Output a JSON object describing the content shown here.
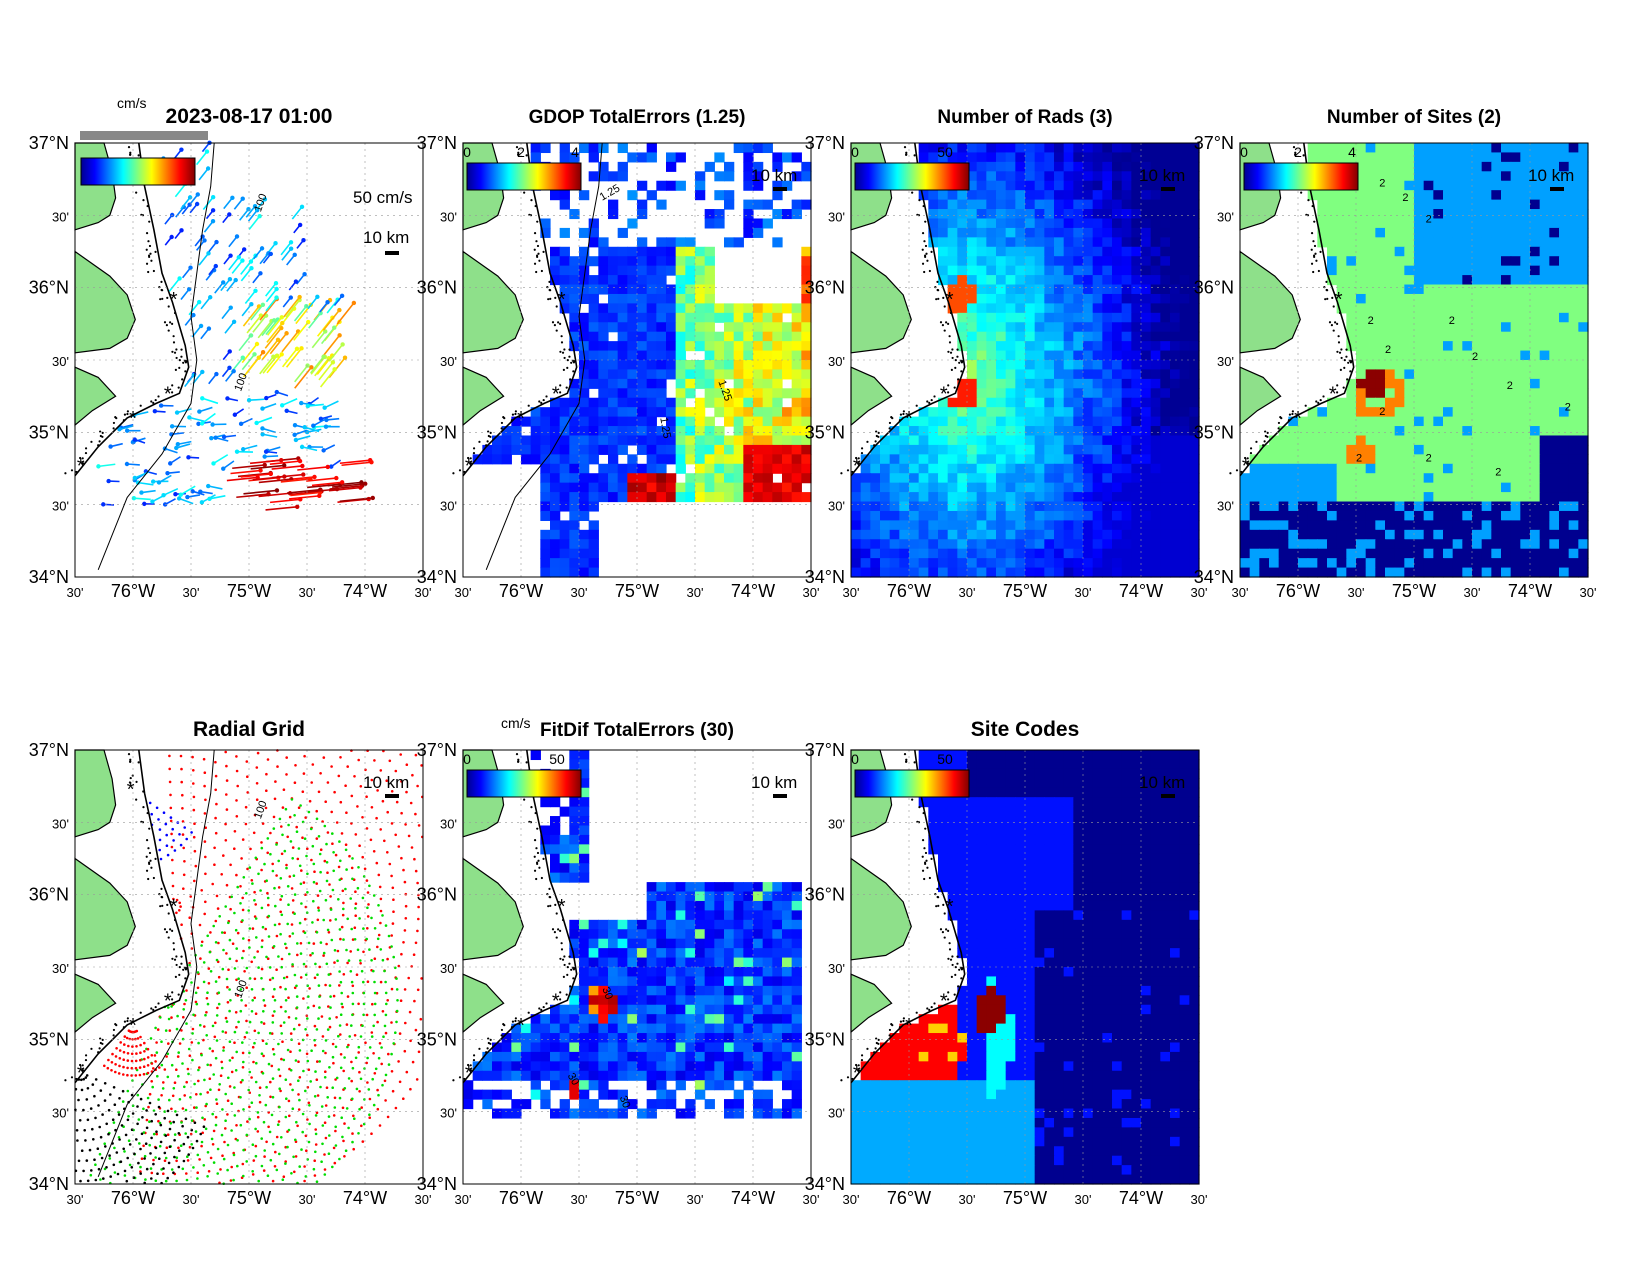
{
  "figure": {
    "timestamp": "2023-08-17 01:00"
  },
  "axes": {
    "lat_labels": [
      "37°N",
      "30'",
      "36°N",
      "30'",
      "35°N",
      "30'",
      "34°N"
    ],
    "lon_labels": [
      "30'",
      "76°W",
      "30'",
      "75°W",
      "30'",
      "74°W",
      "30'"
    ],
    "lon_range": [
      -76.5,
      -73.5
    ],
    "lat_range": [
      34,
      37
    ]
  },
  "colors": {
    "land": "#8ee08a",
    "jet_scale": [
      "#00008f",
      "#0000ff",
      "#0080ff",
      "#00ffff",
      "#80ff80",
      "#ffff00",
      "#ff8000",
      "#ff0000",
      "#800000"
    ],
    "site_marker": "#ff0000"
  },
  "panels": [
    {
      "id": "total-vectors",
      "title": "2023-08-17 01:00",
      "unit_label": "cm/s",
      "colorbar_ticks": [],
      "scale_text": "50 cm/s",
      "km_text": "10 km",
      "contour_labels": [
        "100",
        "100"
      ]
    },
    {
      "id": "gdop",
      "title": "GDOP TotalErrors (1.25)",
      "unit_label": "",
      "colorbar_ticks": [
        "0",
        "2",
        "4"
      ],
      "km_text": "10 km",
      "contour_labels": [
        "1.25",
        "1.25",
        "1.25"
      ]
    },
    {
      "id": "num-rads",
      "title": "Number of Rads (3)",
      "unit_label": "",
      "colorbar_ticks": [
        "0",
        "50"
      ],
      "km_text": "10 km",
      "contour_labels": []
    },
    {
      "id": "num-sites",
      "title": "Number of Sites (2)",
      "unit_label": "",
      "colorbar_ticks": [
        "0",
        "2",
        "4"
      ],
      "km_text": "10 km",
      "contour_labels": [
        "2",
        "2",
        "2",
        "2",
        "2",
        "2",
        "2",
        "2",
        "2",
        "2",
        "2",
        "2",
        "2"
      ]
    },
    {
      "id": "radial-grid",
      "title": "Radial Grid",
      "unit_label": "",
      "colorbar_ticks": [],
      "km_text": "10 km",
      "contour_labels": [
        "100",
        "100"
      ]
    },
    {
      "id": "fitdif",
      "title": "FitDif TotalErrors (30)",
      "unit_label": "cm/s",
      "colorbar_ticks": [
        "0",
        "50"
      ],
      "km_text": "10 km",
      "contour_labels": [
        "30",
        "30",
        "30"
      ]
    },
    {
      "id": "site-codes",
      "title": "Site Codes",
      "unit_label": "",
      "colorbar_ticks": [
        "0",
        "50"
      ],
      "km_text": "10 km",
      "contour_labels": []
    }
  ],
  "sites": [
    {
      "lon": -76.02,
      "lat": 36.73
    },
    {
      "lon": -75.65,
      "lat": 35.92
    },
    {
      "lon": -75.7,
      "lat": 35.27
    },
    {
      "lon": -76.0,
      "lat": 35.1
    },
    {
      "lon": -76.45,
      "lat": 34.77
    }
  ]
}
